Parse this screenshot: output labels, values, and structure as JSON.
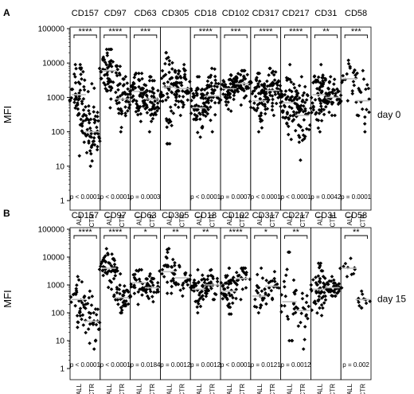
{
  "ylabel": "MFI",
  "y_ticks": [
    "1",
    "10",
    "100",
    "1000",
    "10000",
    "100000"
  ],
  "group_labels": [
    "ALL",
    "CTR"
  ],
  "chart_data": [
    {
      "type": "scatter",
      "panel_label": "A",
      "day_label": "day 0",
      "y_scale": "log",
      "ylim": [
        1,
        100000
      ],
      "markers": [
        {
          "name": "CD157",
          "all_median": 1200,
          "ctr_median": 100,
          "all_range": [
            20,
            9000
          ],
          "ctr_range": [
            10,
            2500
          ],
          "all_n": 60,
          "ctr_n": 55,
          "sig": "****",
          "p": "p < 0.0001"
        },
        {
          "name": "CD97",
          "all_median": 6000,
          "ctr_median": 900,
          "all_range": [
            500,
            25000
          ],
          "ctr_range": [
            100,
            8000
          ],
          "all_n": 60,
          "ctr_n": 55,
          "sig": "****",
          "p": "p < 0.0001"
        },
        {
          "name": "CD63",
          "all_median": 1500,
          "ctr_median": 900,
          "all_range": [
            200,
            5000
          ],
          "ctr_range": [
            100,
            4000
          ],
          "all_n": 60,
          "ctr_n": 55,
          "sig": "***",
          "p": "p = 0.0003"
        },
        {
          "name": "CD305",
          "all_median": 2000,
          "ctr_median": 1800,
          "all_range": [
            45,
            20000
          ],
          "ctr_range": [
            300,
            9000
          ],
          "all_n": 60,
          "ctr_n": 55,
          "sig": "",
          "p": ""
        },
        {
          "name": "CD18",
          "all_median": 500,
          "ctr_median": 1100,
          "all_range": [
            70,
            4000
          ],
          "ctr_range": [
            100,
            7000
          ],
          "all_n": 60,
          "ctr_n": 55,
          "sig": "****",
          "p": "p < 0.0001"
        },
        {
          "name": "CD102",
          "all_median": 1800,
          "ctr_median": 2500,
          "all_range": [
            400,
            4500
          ],
          "ctr_range": [
            600,
            6000
          ],
          "all_n": 60,
          "ctr_n": 55,
          "sig": "***",
          "p": "p = 0.0007"
        },
        {
          "name": "CD317",
          "all_median": 800,
          "ctr_median": 1600,
          "all_range": [
            100,
            5000
          ],
          "ctr_range": [
            300,
            7000
          ],
          "all_n": 60,
          "ctr_n": 55,
          "sig": "****",
          "p": "p < 0.0001"
        },
        {
          "name": "CD217",
          "all_median": 700,
          "ctr_median": 300,
          "all_range": [
            60,
            9000
          ],
          "ctr_range": [
            15,
            4000
          ],
          "all_n": 60,
          "ctr_n": 55,
          "sig": "****",
          "p": "p < 0.0001"
        },
        {
          "name": "CD31",
          "all_median": 1200,
          "ctr_median": 1000,
          "all_range": [
            100,
            9000
          ],
          "ctr_range": [
            300,
            4000
          ],
          "all_n": 60,
          "ctr_n": 55,
          "sig": "**",
          "p": "p = 0.0042"
        },
        {
          "name": "CD58",
          "all_median": 3500,
          "ctr_median": 800,
          "all_range": [
            800,
            12000
          ],
          "ctr_range": [
            100,
            6000
          ],
          "all_n": 20,
          "ctr_n": 20,
          "sig": "***",
          "p": "p = 0.0001"
        }
      ]
    },
    {
      "type": "scatter",
      "panel_label": "B",
      "day_label": "day 15",
      "y_scale": "log",
      "ylim": [
        1,
        100000
      ],
      "markers": [
        {
          "name": "CD157",
          "all_median": 300,
          "ctr_median": 50,
          "all_range": [
            30,
            2000
          ],
          "ctr_range": [
            5,
            600
          ],
          "all_n": 35,
          "ctr_n": 30,
          "sig": "****",
          "p": "p < 0.0001"
        },
        {
          "name": "CD97",
          "all_median": 4000,
          "ctr_median": 350,
          "all_range": [
            700,
            20000
          ],
          "ctr_range": [
            100,
            2500
          ],
          "all_n": 50,
          "ctr_n": 40,
          "sig": "****",
          "p": "p < 0.0001"
        },
        {
          "name": "CD63",
          "all_median": 1200,
          "ctr_median": 800,
          "all_range": [
            200,
            3500
          ],
          "ctr_range": [
            250,
            2500
          ],
          "all_n": 30,
          "ctr_n": 30,
          "sig": "*",
          "p": "p = 0.0184"
        },
        {
          "name": "CD305",
          "all_median": 3000,
          "ctr_median": 1800,
          "all_range": [
            500,
            20000
          ],
          "ctr_range": [
            400,
            5000
          ],
          "all_n": 30,
          "ctr_n": 25,
          "sig": "**",
          "p": "p = 0.0012"
        },
        {
          "name": "CD18",
          "all_median": 700,
          "ctr_median": 1000,
          "all_range": [
            100,
            3500
          ],
          "ctr_range": [
            300,
            3500
          ],
          "all_n": 50,
          "ctr_n": 30,
          "sig": "**",
          "p": "p = 0.0012"
        },
        {
          "name": "CD102",
          "all_median": 600,
          "ctr_median": 1700,
          "all_range": [
            90,
            4000
          ],
          "ctr_range": [
            300,
            4000
          ],
          "all_n": 45,
          "ctr_n": 25,
          "sig": "****",
          "p": "p < 0.0001"
        },
        {
          "name": "CD317",
          "all_median": 400,
          "ctr_median": 900,
          "all_range": [
            100,
            4000
          ],
          "ctr_range": [
            300,
            3000
          ],
          "all_n": 25,
          "ctr_n": 20,
          "sig": "*",
          "p": "p = 0.0121"
        },
        {
          "name": "CD217",
          "all_median": 250,
          "ctr_median": 120,
          "all_range": [
            10,
            15000
          ],
          "ctr_range": [
            5,
            500
          ],
          "all_n": 25,
          "ctr_n": 20,
          "sig": "**",
          "p": "p = 0.0012"
        },
        {
          "name": "CD31",
          "all_median": 700,
          "ctr_median": 800,
          "all_range": [
            80,
            6000
          ],
          "ctr_range": [
            400,
            2000
          ],
          "all_n": 55,
          "ctr_n": 40,
          "sig": "",
          "p": ""
        },
        {
          "name": "CD58",
          "all_median": 4000,
          "ctr_median": 300,
          "all_range": [
            2000,
            9000
          ],
          "ctr_range": [
            150,
            600
          ],
          "all_n": 10,
          "ctr_n": 12,
          "sig": "**",
          "p": "p = 0.002"
        }
      ]
    }
  ]
}
